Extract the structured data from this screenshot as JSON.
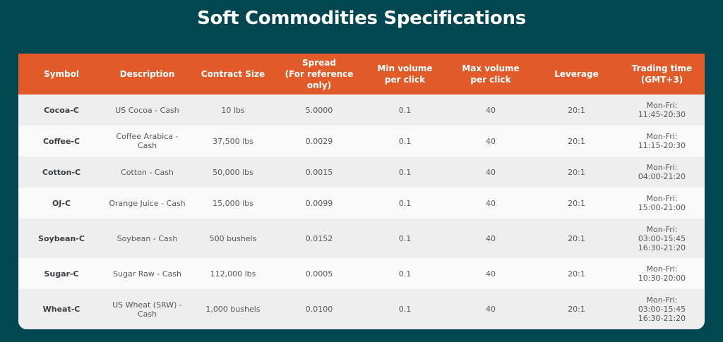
{
  "page": {
    "title": "Soft Commodities Specifications"
  },
  "table": {
    "headers": [
      "Symbol",
      "Description",
      "Contract Size",
      "Spread\n(For reference only)",
      "Min volume\nper click",
      "Max volume\nper click",
      "Leverage",
      "Trading time\n(GMT+3)"
    ],
    "rows": [
      {
        "symbol": "Cocoa-C",
        "description": "US Cocoa - Cash",
        "contract_size": "10 lbs",
        "spread": "5.0000",
        "min_volume": "0.1",
        "max_volume": "40",
        "leverage": "20:1",
        "trading_time": "Mon-Fri:\n11:45-20:30"
      },
      {
        "symbol": "Coffee-C",
        "description": "Coffee Arabica - Cash",
        "contract_size": "37,500 lbs",
        "spread": "0.0029",
        "min_volume": "0.1",
        "max_volume": "40",
        "leverage": "20:1",
        "trading_time": "Mon-Fri:\n11:15-20:30"
      },
      {
        "symbol": "Cotton-C",
        "description": "Cotton - Cash",
        "contract_size": "50,000 lbs",
        "spread": "0.0015",
        "min_volume": "0.1",
        "max_volume": "40",
        "leverage": "20:1",
        "trading_time": "Mon-Fri:\n04:00-21:20"
      },
      {
        "symbol": "OJ-C",
        "description": "Orange Juice - Cash",
        "contract_size": "15,000 lbs",
        "spread": "0.0099",
        "min_volume": "0.1",
        "max_volume": "40",
        "leverage": "20:1",
        "trading_time": "Mon-Fri:\n15:00-21:00"
      },
      {
        "symbol": "Soybean-C",
        "description": "Soybean - Cash",
        "contract_size": "500 bushels",
        "spread": "0.0152",
        "min_volume": "0.1",
        "max_volume": "40",
        "leverage": "20:1",
        "trading_time": "Mon-Fri:\n03:00-15:45\n16:30-21:20"
      },
      {
        "symbol": "Sugar-C",
        "description": "Sugar Raw - Cash",
        "contract_size": "112,000 lbs",
        "spread": "0.0005",
        "min_volume": "0.1",
        "max_volume": "40",
        "leverage": "20:1",
        "trading_time": "Mon-Fri:\n10:30-20:00"
      },
      {
        "symbol": "Wheat-C",
        "description": "US Wheat (SRW) -\nCash",
        "contract_size": "1,000 bushels",
        "spread": "0.0100",
        "min_volume": "0.1",
        "max_volume": "40",
        "leverage": "20:1",
        "trading_time": "Mon-Fri:\n03:00-15:45\n16:30-21:20"
      }
    ]
  },
  "colors": {
    "background": "#024652",
    "header_bg": "#e15a2a",
    "header_text": "#ffffff",
    "row_odd_bg": "#eeeeee",
    "row_even_bg": "#fafafa",
    "cell_text": "#55595c"
  }
}
